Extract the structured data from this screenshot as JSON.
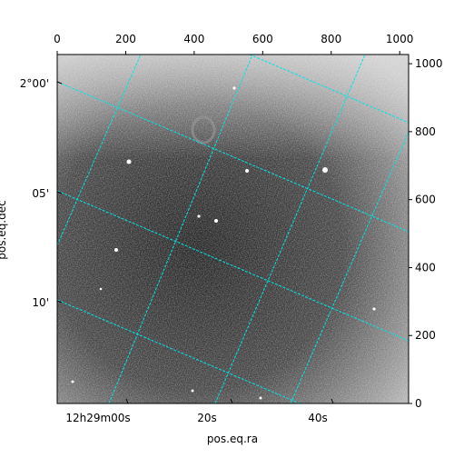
{
  "chart_data": {
    "type": "image",
    "xlim": [
      0,
      1026
    ],
    "ylim": [
      0,
      1027
    ],
    "xticks": [
      0,
      200,
      400,
      600,
      800,
      1000
    ],
    "yticks": [
      0,
      200,
      400,
      600,
      800,
      1000
    ],
    "ra_ticks": [
      "12h29m00s",
      "20s",
      "40s"
    ],
    "dec_ticks": [
      "2°00'",
      "05'",
      "10'"
    ],
    "xlabel": "pos.eq.ra",
    "ylabel": "pos.eq.dec",
    "grid_color": "#00e5e5"
  }
}
